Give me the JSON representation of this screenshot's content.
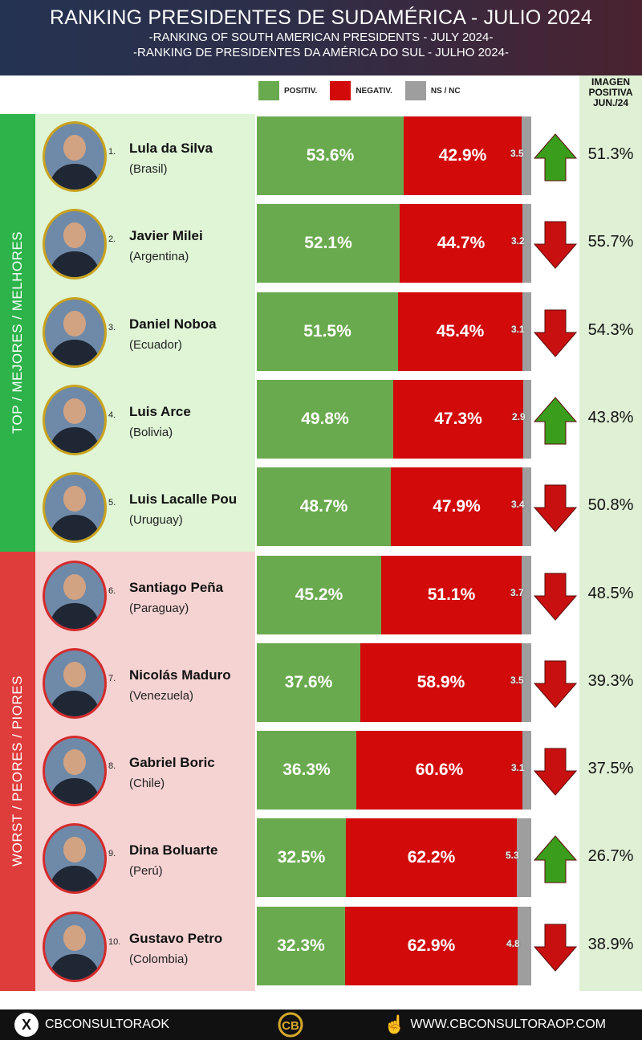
{
  "header": {
    "title": "RANKING PRESIDENTES DE SUDAMÉRICA - JULIO 2024",
    "subtitle_en": "-RANKING OF SOUTH AMERICAN PRESIDENTS - JULY 2024-",
    "subtitle_pt": "-RANKING DE PRESIDENTES DA AMÉRICA DO SUL - JULHO 2024-"
  },
  "legend": {
    "positive": "POSITIV.",
    "negative": "NEGATIV.",
    "nsnc": "NS / NC"
  },
  "image_column_header": [
    "IMAGEN",
    "POSITIVA",
    "JUN./24"
  ],
  "bands": {
    "top": "TOP / MEJORES / MELHORES",
    "worst": "WORST / PEORES / PIORES"
  },
  "colors": {
    "positive": "#6aaa4f",
    "negative": "#d20a0a",
    "nsnc": "#9e9e9e",
    "top_band": "#2db34a",
    "worst_band": "#df3c3c",
    "arrow_up": "#3a9d1c",
    "arrow_down": "#c81010"
  },
  "chart_data": {
    "type": "bar",
    "stacked": true,
    "orientation": "horizontal",
    "categories": [
      "Lula da Silva",
      "Javier Milei",
      "Daniel Noboa",
      "Luis Arce",
      "Luis Lacalle Pou",
      "Santiago Peña",
      "Nicolás Maduro",
      "Gabriel Boric",
      "Dina Boluarte",
      "Gustavo Petro"
    ],
    "series": [
      {
        "name": "POSITIV.",
        "values": [
          53.6,
          52.1,
          51.5,
          49.8,
          48.7,
          45.2,
          37.6,
          36.3,
          32.5,
          32.3
        ]
      },
      {
        "name": "NEGATIV.",
        "values": [
          42.9,
          44.7,
          45.4,
          47.3,
          47.9,
          51.1,
          58.9,
          60.6,
          62.2,
          62.9
        ]
      },
      {
        "name": "NS / NC",
        "values": [
          3.5,
          3.2,
          3.1,
          2.9,
          3.4,
          3.7,
          3.5,
          3.1,
          5.3,
          4.8
        ]
      }
    ],
    "rows": [
      {
        "rank": "1.",
        "name": "Lula da Silva",
        "country": "(Brasil)",
        "pos": 53.6,
        "pos_label": "53.6%",
        "neg": 42.9,
        "neg_label": "42.9%",
        "ns": 3.5,
        "ns_label": "3.5",
        "trend": "up",
        "prev_label": "51.3%"
      },
      {
        "rank": "2.",
        "name": "Javier Milei",
        "country": "(Argentina)",
        "pos": 52.1,
        "pos_label": "52.1%",
        "neg": 44.7,
        "neg_label": "44.7%",
        "ns": 3.2,
        "ns_label": "3.2",
        "trend": "down",
        "prev_label": "55.7%"
      },
      {
        "rank": "3.",
        "name": "Daniel Noboa",
        "country": "(Ecuador)",
        "pos": 51.5,
        "pos_label": "51.5%",
        "neg": 45.4,
        "neg_label": "45.4%",
        "ns": 3.1,
        "ns_label": "3.1",
        "trend": "down",
        "prev_label": "54.3%"
      },
      {
        "rank": "4.",
        "name": "Luis Arce",
        "country": "(Bolivia)",
        "pos": 49.8,
        "pos_label": "49.8%",
        "neg": 47.3,
        "neg_label": "47.3%",
        "ns": 2.9,
        "ns_label": "2.9",
        "trend": "up",
        "prev_label": "43.8%"
      },
      {
        "rank": "5.",
        "name": "Luis Lacalle Pou",
        "country": "(Uruguay)",
        "pos": 48.7,
        "pos_label": "48.7%",
        "neg": 47.9,
        "neg_label": "47.9%",
        "ns": 3.4,
        "ns_label": "3.4",
        "trend": "down",
        "prev_label": "50.8%"
      },
      {
        "rank": "6.",
        "name": "Santiago Peña",
        "country": "(Paraguay)",
        "pos": 45.2,
        "pos_label": "45.2%",
        "neg": 51.1,
        "neg_label": "51.1%",
        "ns": 3.7,
        "ns_label": "3.7",
        "trend": "down",
        "prev_label": "48.5%"
      },
      {
        "rank": "7.",
        "name": "Nicolás Maduro",
        "country": "(Venezuela)",
        "pos": 37.6,
        "pos_label": "37.6%",
        "neg": 58.9,
        "neg_label": "58.9%",
        "ns": 3.5,
        "ns_label": "3.5",
        "trend": "down",
        "prev_label": "39.3%"
      },
      {
        "rank": "8.",
        "name": "Gabriel Boric",
        "country": "(Chile)",
        "pos": 36.3,
        "pos_label": "36.3%",
        "neg": 60.6,
        "neg_label": "60.6%",
        "ns": 3.1,
        "ns_label": "3.1",
        "trend": "down",
        "prev_label": "37.5%"
      },
      {
        "rank": "9.",
        "name": "Dina Boluarte",
        "country": "(Perú)",
        "pos": 32.5,
        "pos_label": "32.5%",
        "neg": 62.2,
        "neg_label": "62.2%",
        "ns": 5.3,
        "ns_label": "5.3",
        "trend": "up",
        "prev_label": "26.7%"
      },
      {
        "rank": "10.",
        "name": "Gustavo Petro",
        "country": "(Colombia)",
        "pos": 32.3,
        "pos_label": "32.3%",
        "neg": 62.9,
        "neg_label": "62.9%",
        "ns": 4.8,
        "ns_label": "4.8",
        "trend": "down",
        "prev_label": "38.9%"
      }
    ],
    "top_count": 5
  },
  "footer": {
    "social": "CBCONSULTORAOK",
    "website": "WWW.CBCONSULTORAOP.COM"
  }
}
